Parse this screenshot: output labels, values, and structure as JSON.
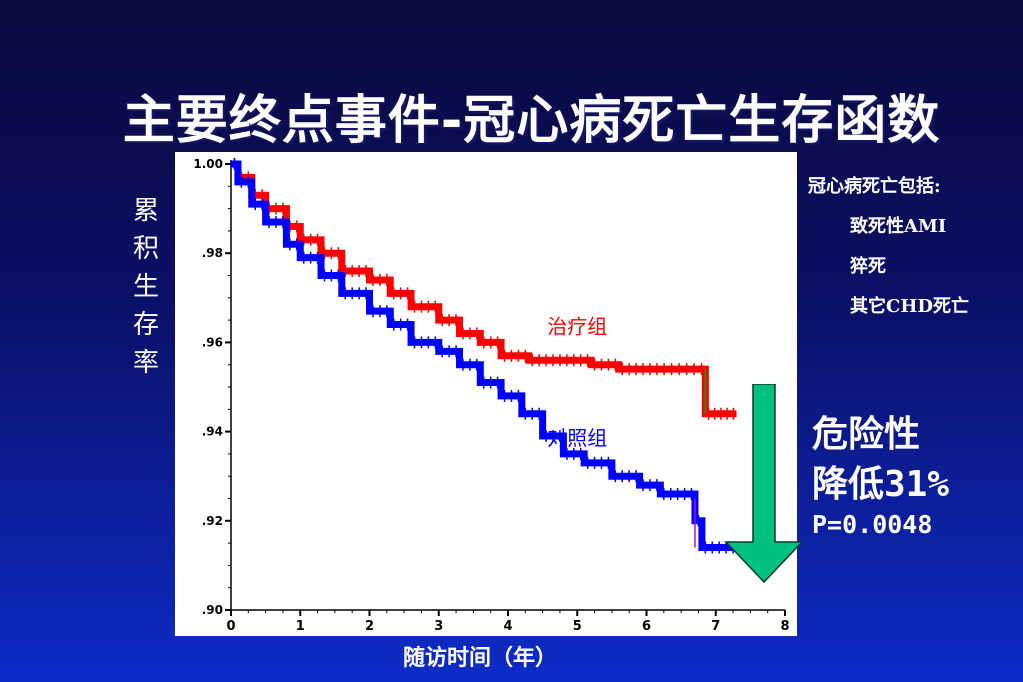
{
  "slide": {
    "title": "主要终点事件-冠心病死亡生存函数",
    "ylabel": "累积生存率",
    "xlabel": "随访时间（年）"
  },
  "notes": {
    "head": "冠心病死亡包括:",
    "items": [
      "致死性AMI",
      "猝死",
      "其它CHD死亡"
    ]
  },
  "risk": {
    "line1": "危险性",
    "line2": "降低31%",
    "line3": "P=0.0048"
  },
  "colors": {
    "treatment": "#ff0000",
    "control": "#0000ff",
    "arrow": "#00c080",
    "text_white": "#ffffff"
  },
  "chart_data": {
    "type": "line",
    "xlabel": "随访时间（年）",
    "ylabel": "累积生存率",
    "xlim": [
      0,
      8
    ],
    "ylim": [
      0.9,
      1.0
    ],
    "x_ticks": [
      "0",
      "1",
      "2",
      "3",
      "4",
      "5",
      "6",
      "7",
      "8"
    ],
    "y_ticks": [
      {
        "v": 1.0,
        "label": "1.00"
      },
      {
        "v": 0.98,
        "label": ".98"
      },
      {
        "v": 0.96,
        "label": ".96"
      },
      {
        "v": 0.94,
        "label": ".94"
      },
      {
        "v": 0.92,
        "label": ".92"
      },
      {
        "v": 0.9,
        "label": ".90"
      }
    ],
    "grid": false,
    "series": [
      {
        "name": "治疗组",
        "color": "#ff0000",
        "points": [
          [
            0.0,
            1.0
          ],
          [
            0.1,
            0.997
          ],
          [
            0.3,
            0.993
          ],
          [
            0.5,
            0.99
          ],
          [
            0.8,
            0.986
          ],
          [
            1.0,
            0.983
          ],
          [
            1.3,
            0.98
          ],
          [
            1.6,
            0.976
          ],
          [
            2.0,
            0.974
          ],
          [
            2.3,
            0.971
          ],
          [
            2.6,
            0.968
          ],
          [
            3.0,
            0.965
          ],
          [
            3.3,
            0.962
          ],
          [
            3.6,
            0.96
          ],
          [
            3.9,
            0.957
          ],
          [
            4.3,
            0.956
          ],
          [
            4.8,
            0.956
          ],
          [
            5.2,
            0.955
          ],
          [
            5.6,
            0.954
          ],
          [
            6.2,
            0.954
          ],
          [
            6.85,
            0.954
          ],
          [
            6.85,
            0.944
          ],
          [
            7.3,
            0.944
          ]
        ]
      },
      {
        "name": "对照组",
        "color": "#0000ff",
        "points": [
          [
            0.0,
            1.0
          ],
          [
            0.1,
            0.996
          ],
          [
            0.3,
            0.991
          ],
          [
            0.5,
            0.987
          ],
          [
            0.8,
            0.982
          ],
          [
            1.0,
            0.979
          ],
          [
            1.3,
            0.975
          ],
          [
            1.6,
            0.971
          ],
          [
            2.0,
            0.967
          ],
          [
            2.3,
            0.964
          ],
          [
            2.6,
            0.96
          ],
          [
            3.0,
            0.958
          ],
          [
            3.3,
            0.955
          ],
          [
            3.6,
            0.951
          ],
          [
            3.9,
            0.948
          ],
          [
            4.2,
            0.944
          ],
          [
            4.5,
            0.939
          ],
          [
            4.8,
            0.935
          ],
          [
            5.1,
            0.933
          ],
          [
            5.5,
            0.93
          ],
          [
            5.9,
            0.928
          ],
          [
            6.2,
            0.926
          ],
          [
            6.7,
            0.925
          ],
          [
            6.7,
            0.92
          ],
          [
            6.8,
            0.92
          ],
          [
            6.8,
            0.914
          ],
          [
            7.3,
            0.914
          ]
        ]
      }
    ],
    "series_labels": [
      {
        "text": "治疗组",
        "color": "#ff0000",
        "x": 5.0,
        "y": 0.962
      },
      {
        "text": "对照组",
        "color": "#0000ff",
        "x": 5.0,
        "y": 0.937
      }
    ]
  }
}
